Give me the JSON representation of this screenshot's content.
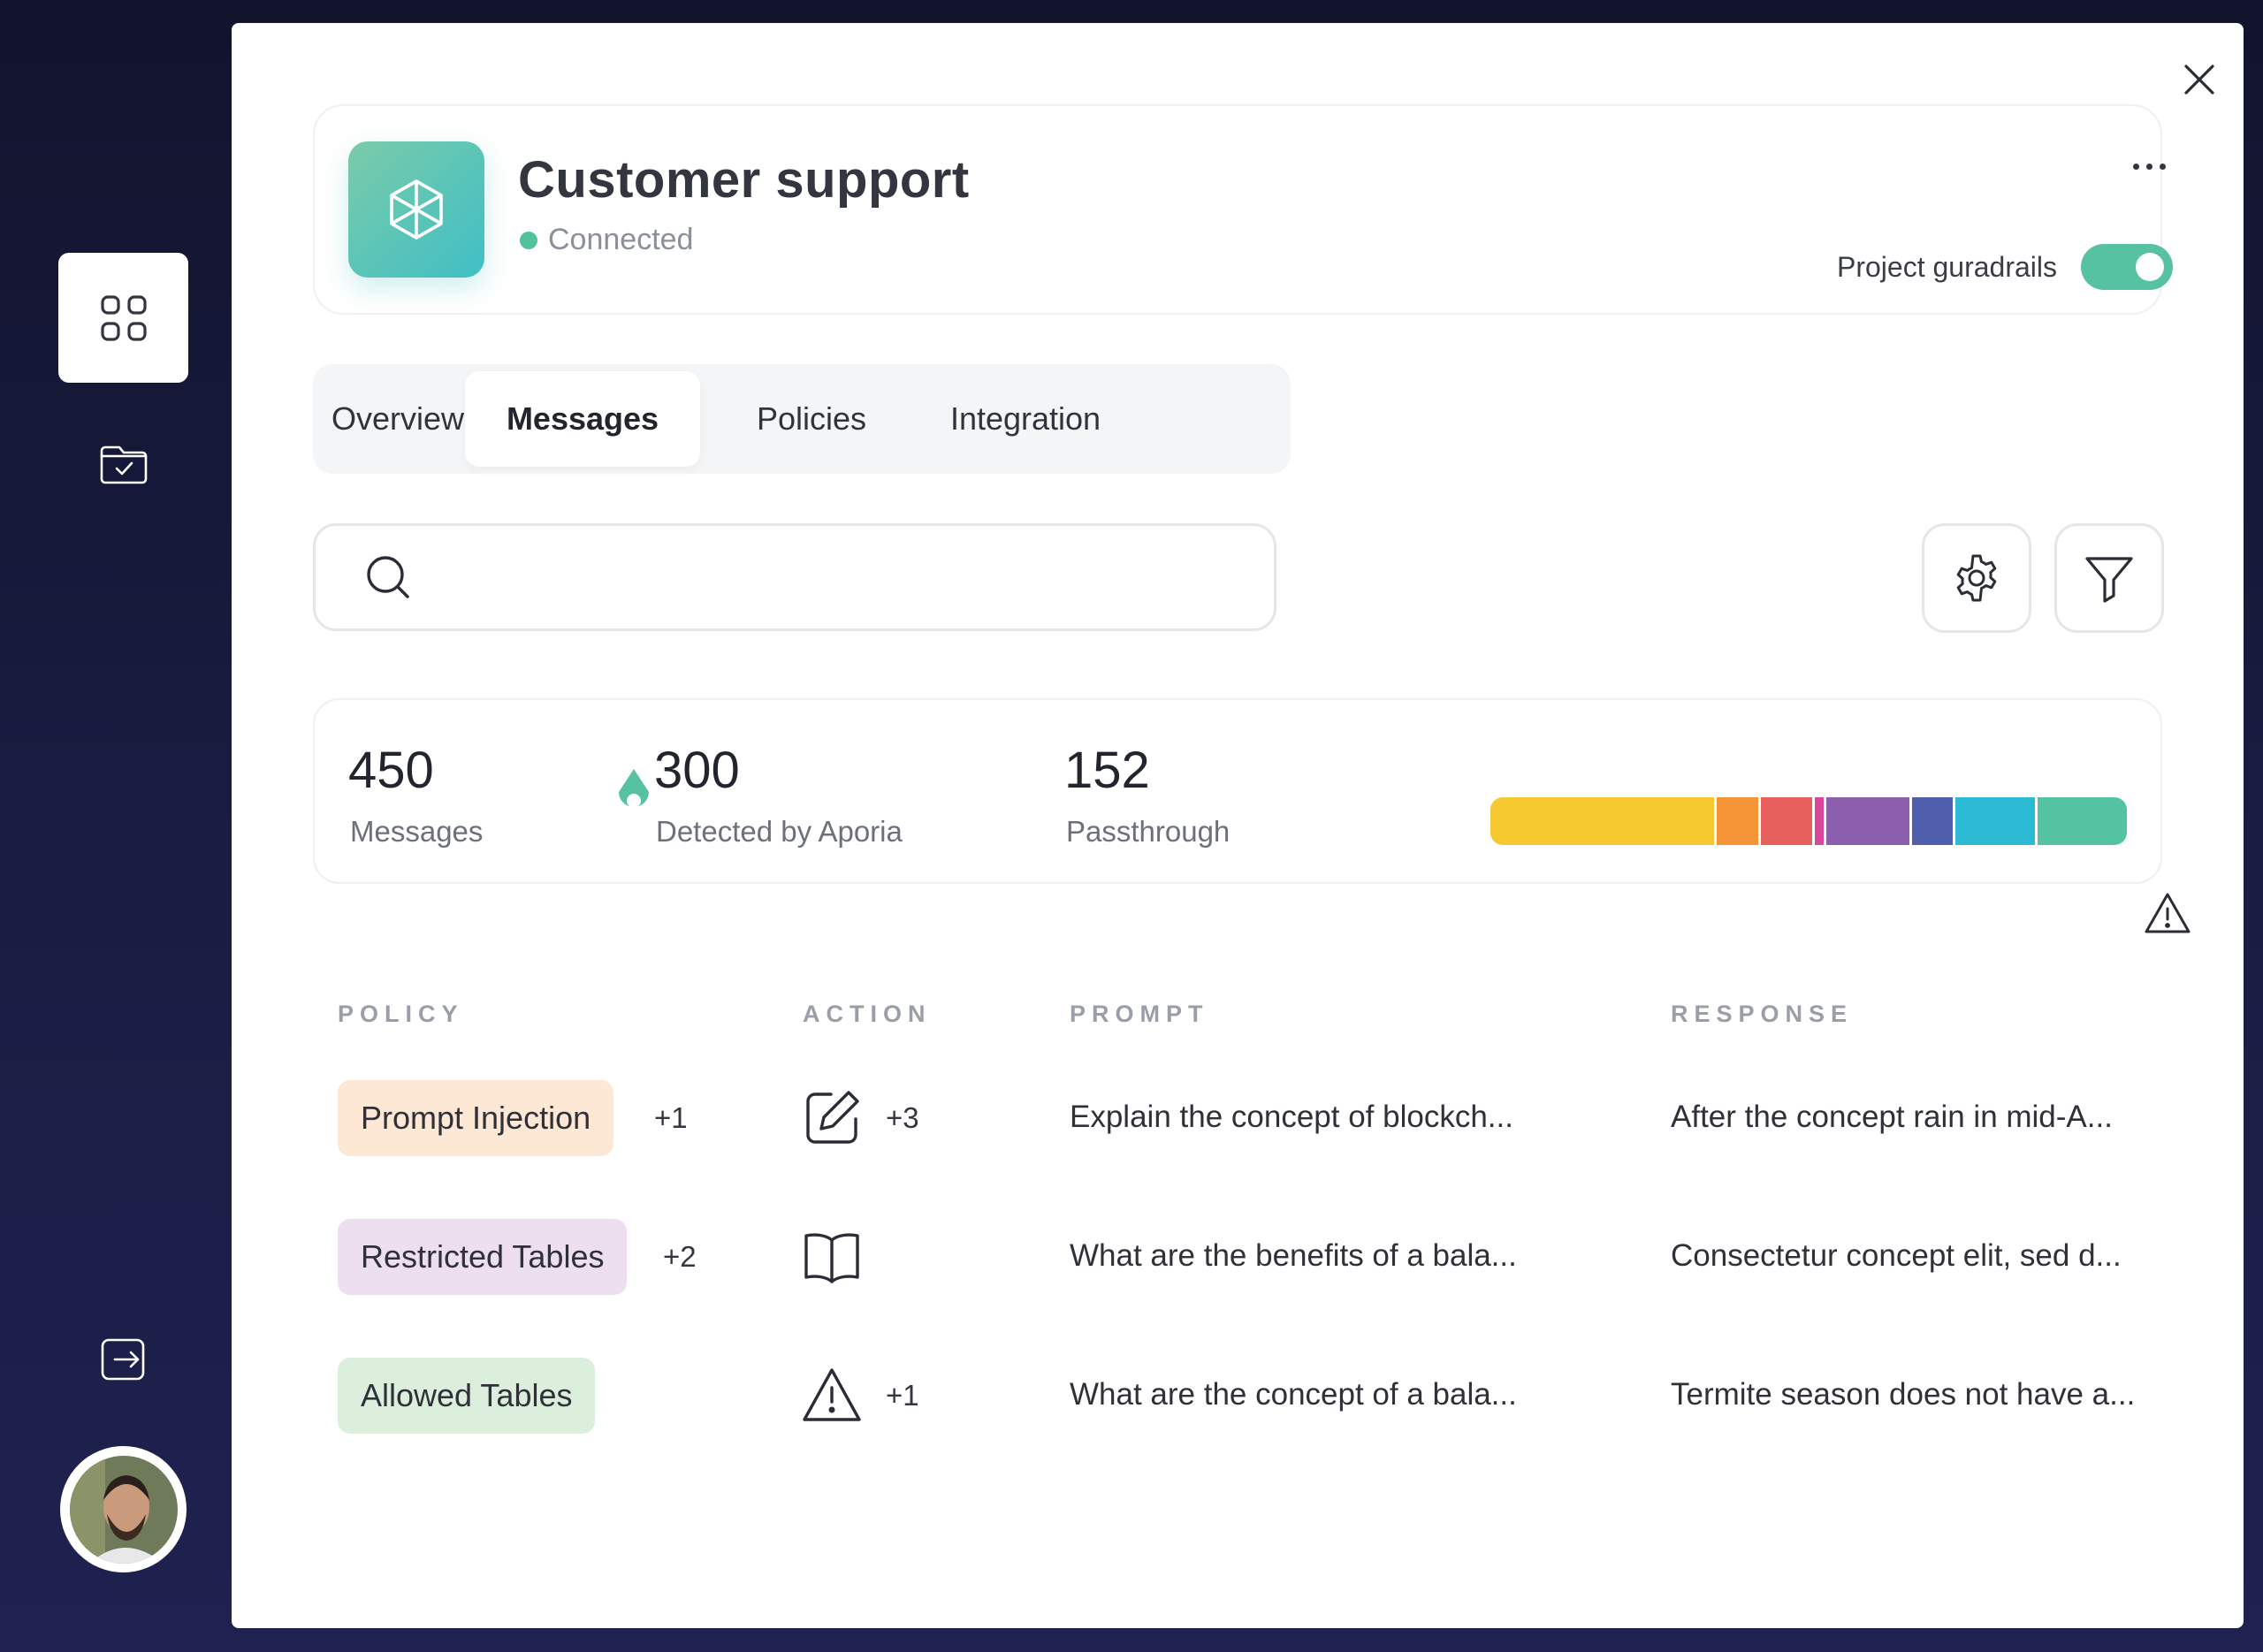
{
  "project": {
    "title": "Customer support",
    "status": "Connected",
    "guardrails_label": "Project guradrails",
    "guardrails_on": true
  },
  "tabs": [
    {
      "label": "Overview",
      "active": false
    },
    {
      "label": "Messages",
      "active": true
    },
    {
      "label": "Policies",
      "active": false
    },
    {
      "label": "Integration",
      "active": false
    }
  ],
  "search": {
    "value": "",
    "placeholder": ""
  },
  "stats": {
    "messages": {
      "value": "450",
      "label": "Messages"
    },
    "detected": {
      "value": "300",
      "label": "Detected by Aporia"
    },
    "passthrough": {
      "value": "152",
      "label": "Passthrough"
    }
  },
  "distribution": [
    {
      "color": "#f7c930",
      "share": 0.355
    },
    {
      "color": "#f59437",
      "share": 0.07
    },
    {
      "color": "#e8605e",
      "share": 0.085
    },
    {
      "color": "#d9479b",
      "share": 0.018
    },
    {
      "color": "#8b5fae",
      "share": 0.135
    },
    {
      "color": "#4f5fad",
      "share": 0.067
    },
    {
      "color": "#2cbad4",
      "share": 0.13
    },
    {
      "color": "#54c3a1",
      "share": 0.14
    }
  ],
  "table": {
    "headers": {
      "policy": "POLICY",
      "action": "ACTION",
      "prompt": "PROMPT",
      "response": "RESPONSE"
    },
    "rows": [
      {
        "policy": "Prompt Injection",
        "policy_color": "#fde8d6",
        "policy_extra": "+1",
        "action_icon": "edit-icon",
        "action_extra": "+3",
        "prompt": "Explain the concept of blockch...",
        "response": "After the concept rain in mid-A..."
      },
      {
        "policy": "Restricted Tables",
        "policy_color": "#eddff0",
        "policy_extra": "+2",
        "action_icon": "book-icon",
        "action_extra": "",
        "prompt": "What are the benefits of a bala...",
        "response": "Consectetur concept elit, sed d..."
      },
      {
        "policy": "Allowed Tables",
        "policy_color": "#dcefdd",
        "policy_extra": "",
        "action_icon": "warning-icon",
        "action_extra": "+1",
        "prompt": "What are the concept of a bala...",
        "response": "Termite season does not have a..."
      }
    ]
  },
  "colors": {
    "accent": "#56c2a2",
    "background": "#12142e"
  }
}
